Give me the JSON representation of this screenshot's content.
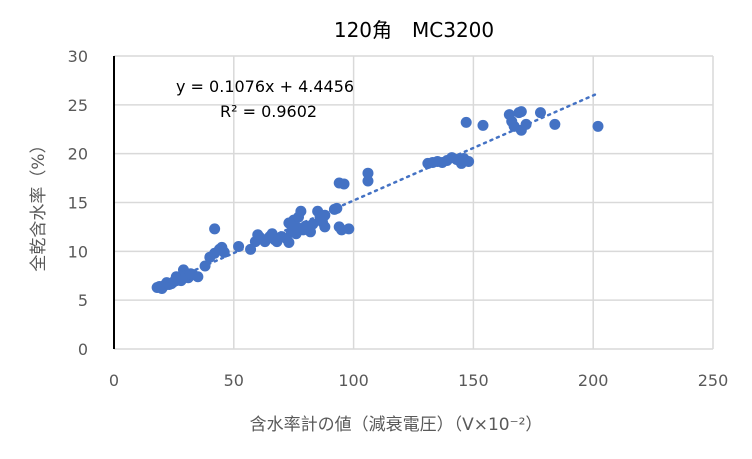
{
  "chart_data": {
    "type": "scatter",
    "title": "120角　MC3200",
    "xlabel": "含水率計の値（減衰電圧）（V×10⁻²）",
    "ylabel": "全乾含水率（%）",
    "xlim": [
      0,
      250
    ],
    "ylim": [
      0,
      30
    ],
    "xticks": [
      0,
      50,
      100,
      150,
      200,
      250
    ],
    "yticks": [
      0,
      5,
      10,
      15,
      20,
      25,
      30
    ],
    "grid": true,
    "marker_color": "#4472C4",
    "trendline": {
      "type": "linear",
      "slope": 0.1076,
      "intercept": 4.4456,
      "x_range": [
        18,
        202
      ],
      "equation": "y = 0.1076x + 4.4456",
      "r2": "R² = 0.9602"
    },
    "points": [
      [
        18,
        6.3
      ],
      [
        19,
        6.4
      ],
      [
        20,
        6.2
      ],
      [
        21,
        6.5
      ],
      [
        22,
        6.8
      ],
      [
        23,
        6.6
      ],
      [
        24,
        6.7
      ],
      [
        25,
        6.9
      ],
      [
        26,
        7.0
      ],
      [
        26,
        7.4
      ],
      [
        27,
        7.2
      ],
      [
        28,
        7.0
      ],
      [
        29,
        8.1
      ],
      [
        30,
        7.5
      ],
      [
        31,
        7.3
      ],
      [
        32,
        7.7
      ],
      [
        33,
        7.6
      ],
      [
        35,
        7.4
      ],
      [
        38,
        8.5
      ],
      [
        40,
        9.4
      ],
      [
        42,
        12.3
      ],
      [
        42,
        9.8
      ],
      [
        44,
        10.2
      ],
      [
        45,
        10.4
      ],
      [
        46,
        9.9
      ],
      [
        52,
        10.5
      ],
      [
        57,
        10.2
      ],
      [
        59,
        11.0
      ],
      [
        60,
        11.7
      ],
      [
        61,
        11.4
      ],
      [
        63,
        11.0
      ],
      [
        65,
        11.5
      ],
      [
        66,
        11.8
      ],
      [
        67,
        11.2
      ],
      [
        68,
        11.0
      ],
      [
        70,
        11.5
      ],
      [
        72,
        11.3
      ],
      [
        73,
        10.9
      ],
      [
        73,
        12.9
      ],
      [
        74,
        12.0
      ],
      [
        75,
        13.2
      ],
      [
        76,
        11.8
      ],
      [
        76,
        12.5
      ],
      [
        77,
        13.5
      ],
      [
        78,
        14.1
      ],
      [
        79,
        12.2
      ],
      [
        80,
        12.6
      ],
      [
        82,
        12.0
      ],
      [
        83,
        12.8
      ],
      [
        85,
        14.1
      ],
      [
        86,
        13.5
      ],
      [
        87,
        13.0
      ],
      [
        88,
        12.5
      ],
      [
        88,
        13.7
      ],
      [
        92,
        14.3
      ],
      [
        93,
        14.4
      ],
      [
        94,
        12.5
      ],
      [
        95,
        12.2
      ],
      [
        94,
        17.0
      ],
      [
        96,
        16.9
      ],
      [
        98,
        12.3
      ],
      [
        106,
        17.2
      ],
      [
        106,
        18.0
      ],
      [
        131,
        19.0
      ],
      [
        133,
        19.1
      ],
      [
        135,
        19.2
      ],
      [
        137,
        19.1
      ],
      [
        139,
        19.3
      ],
      [
        141,
        19.6
      ],
      [
        143,
        19.4
      ],
      [
        145,
        19.0
      ],
      [
        146,
        19.5
      ],
      [
        148,
        19.2
      ],
      [
        147,
        23.2
      ],
      [
        154,
        22.9
      ],
      [
        165,
        24.0
      ],
      [
        166,
        23.3
      ],
      [
        167,
        22.8
      ],
      [
        169,
        24.2
      ],
      [
        170,
        24.3
      ],
      [
        170,
        22.4
      ],
      [
        172,
        23.0
      ],
      [
        178,
        24.2
      ],
      [
        184,
        23.0
      ],
      [
        202,
        22.8
      ]
    ]
  }
}
